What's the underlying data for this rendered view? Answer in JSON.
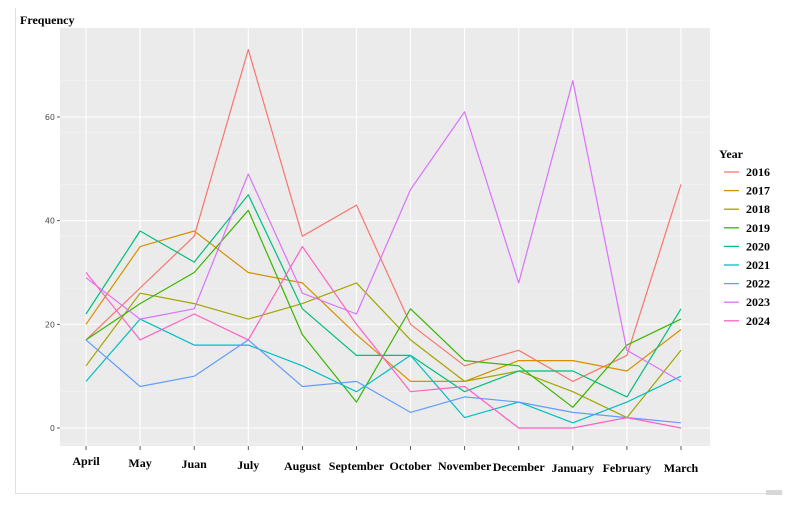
{
  "chart_data": {
    "type": "line",
    "title": "",
    "xlabel": "",
    "ylabel": "Frequency",
    "categories": [
      "April",
      "May",
      "Juan",
      "July",
      "August",
      "September",
      "October",
      "November",
      "December",
      "January",
      "February",
      "March"
    ],
    "ylim": [
      -3,
      75
    ],
    "yticks": [
      0,
      20,
      40,
      60
    ],
    "grid": true,
    "legend": {
      "title": "Year",
      "position": "right"
    },
    "series": [
      {
        "name": "2016",
        "color": "#F8766D",
        "values": [
          17,
          27,
          37,
          73,
          37,
          43,
          20,
          12,
          15,
          9,
          14,
          47
        ]
      },
      {
        "name": "2017",
        "color": "#D89000",
        "values": [
          20,
          35,
          38,
          30,
          28,
          18,
          9,
          9,
          13,
          13,
          11,
          19
        ]
      },
      {
        "name": "2018",
        "color": "#A3A500",
        "values": [
          12,
          26,
          24,
          21,
          24,
          28,
          17,
          9,
          11,
          7,
          2,
          15
        ]
      },
      {
        "name": "2019",
        "color": "#39B600",
        "values": [
          17,
          24,
          30,
          42,
          18,
          5,
          23,
          13,
          12,
          4,
          16,
          21
        ]
      },
      {
        "name": "2020",
        "color": "#00BF7D",
        "values": [
          22,
          38,
          32,
          45,
          23,
          14,
          14,
          7,
          11,
          11,
          6,
          23
        ]
      },
      {
        "name": "2021",
        "color": "#00BFC4",
        "values": [
          9,
          21,
          16,
          16,
          12,
          7,
          14,
          2,
          5,
          1,
          5,
          10
        ]
      },
      {
        "name": "2022",
        "color": "#619CFF",
        "values": [
          17,
          8,
          10,
          17,
          8,
          9,
          3,
          6,
          5,
          3,
          2,
          1
        ]
      },
      {
        "name": "2023",
        "color": "#DB72FB",
        "values": [
          29,
          21,
          23,
          49,
          26,
          22,
          46,
          61,
          28,
          67,
          15,
          9
        ]
      },
      {
        "name": "2024",
        "color": "#FF61C3",
        "values": [
          30,
          17,
          22,
          17,
          35,
          20,
          7,
          8,
          0,
          0,
          2,
          0
        ]
      }
    ]
  }
}
